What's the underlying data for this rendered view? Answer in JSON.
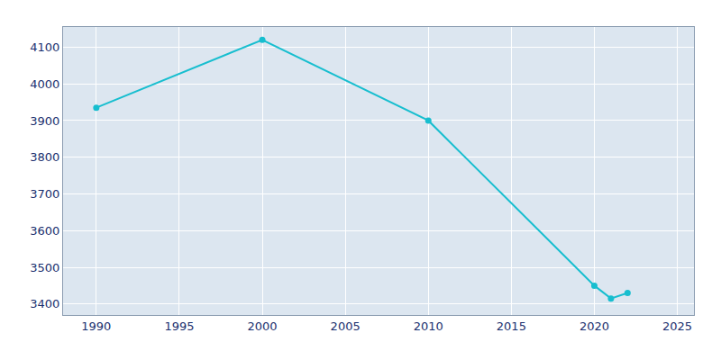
{
  "chart_data": {
    "type": "line",
    "x": [
      1990,
      2000,
      2010,
      2020,
      2021,
      2022
    ],
    "values": [
      3935,
      4120,
      3900,
      3450,
      3415,
      3430
    ],
    "color": "#17becf",
    "marker": "circle",
    "xlim": [
      1988,
      2026
    ],
    "ylim": [
      3370,
      4155
    ],
    "xticks": [
      1990,
      1995,
      2000,
      2005,
      2010,
      2015,
      2020,
      2025
    ],
    "yticks": [
      3400,
      3500,
      3600,
      3700,
      3800,
      3900,
      4000,
      4100
    ],
    "grid": true
  }
}
